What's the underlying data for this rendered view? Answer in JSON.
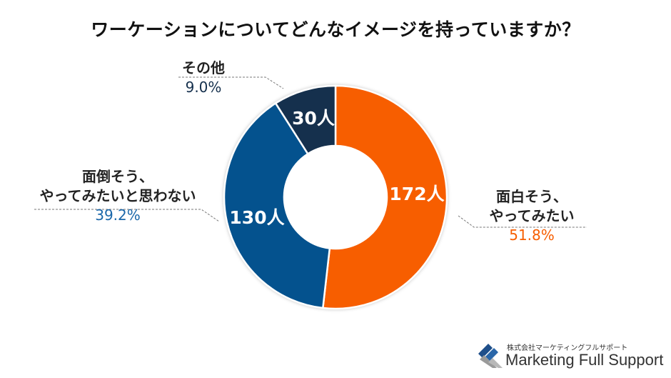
{
  "title": "ワーケーションについてどんなイメージを持っていますか？",
  "chart_data": {
    "type": "pie",
    "donut": true,
    "title": "ワーケーションについてどんなイメージを持っていますか？",
    "slices": [
      {
        "label_line1": "面白そう、",
        "label_line2": "やってみたい",
        "value": 172,
        "value_label": "172人",
        "percent": 51.8,
        "percent_label": "51.8%",
        "color": "#f75e00"
      },
      {
        "label_line1": "面倒そう、",
        "label_line2": "やってみたいと思わない",
        "value": 130,
        "value_label": "130人",
        "percent": 39.2,
        "percent_label": "39.2%",
        "color": "#04528e"
      },
      {
        "label_line1": "その他",
        "label_line2": "",
        "value": 30,
        "value_label": "30人",
        "percent": 9.0,
        "percent_label": "9.0%",
        "color": "#15304d"
      }
    ],
    "start_angle": "top",
    "direction": "clockwise"
  },
  "logo": {
    "jp": "株式会社マーケティングフルサポート",
    "en": "Marketing Full Support"
  }
}
